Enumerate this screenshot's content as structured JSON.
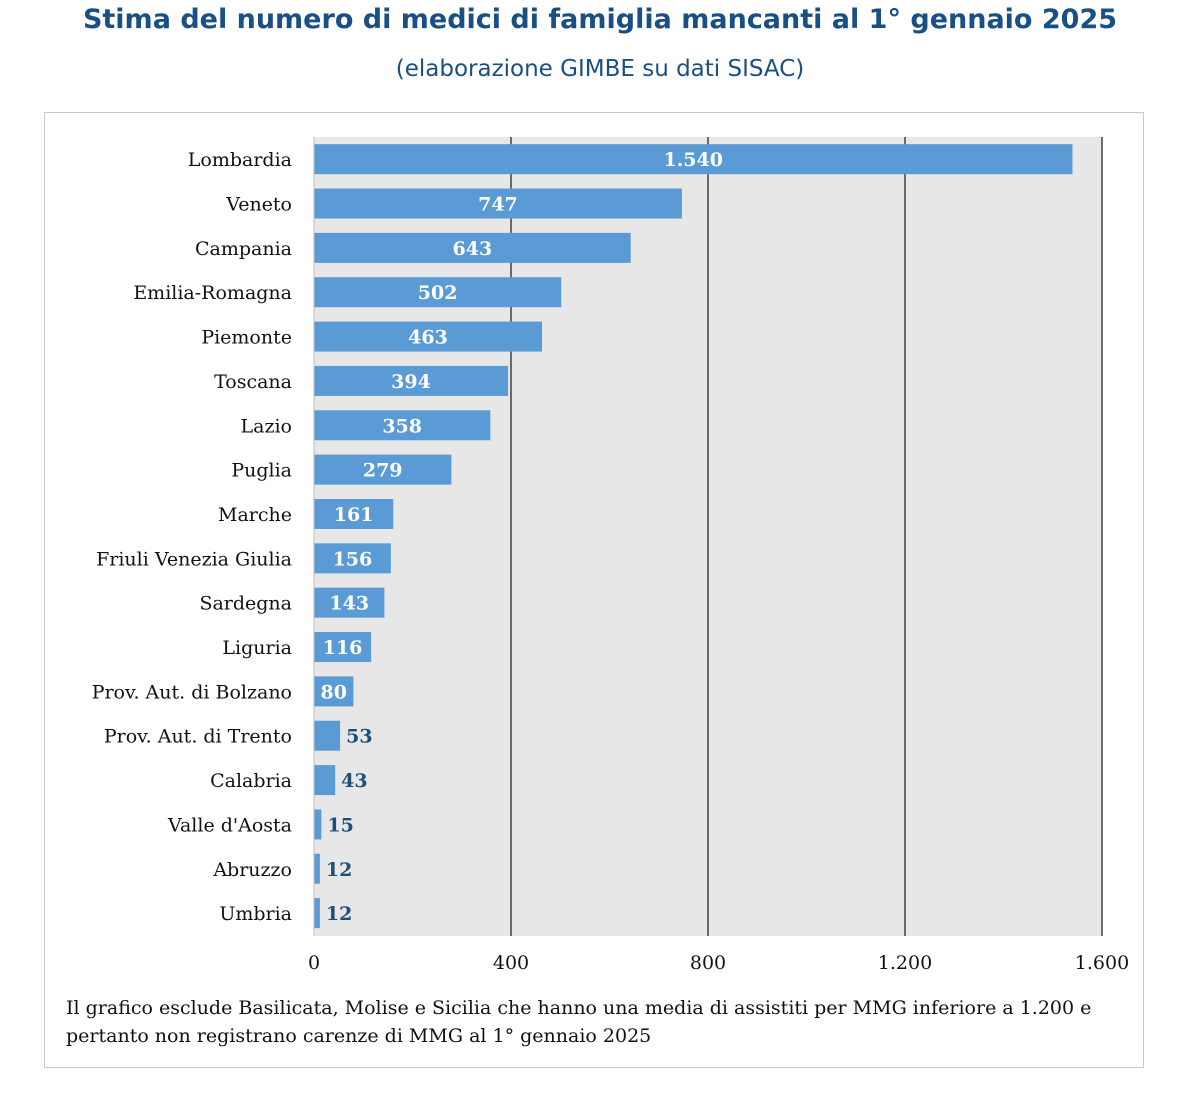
{
  "title": "Stima del numero di medici di famiglia mancanti al 1° gennaio 2025",
  "subtitle": "(elaborazione GIMBE su dati SISAC)",
  "note": "Il grafico esclude Basilicata, Molise e Sicilia che hanno una media di assistiti per MMG inferiore a 1.200 e pertanto non registrano carenze di MMG al 1° gennaio 2025",
  "colors": {
    "bar": "#5b9bd5",
    "plot_background": "#e7e7e7",
    "gridline": "#404040",
    "label_inside": "#ffffff",
    "label_outside": "#1f4e79",
    "title": "#1a4f86"
  },
  "chart_data": {
    "type": "bar",
    "orientation": "horizontal",
    "categories": [
      "Lombardia",
      "Veneto",
      "Campania",
      "Emilia-Romagna",
      "Piemonte",
      "Toscana",
      "Lazio",
      "Puglia",
      "Marche",
      "Friuli Venezia Giulia",
      "Sardegna",
      "Liguria",
      "Prov. Aut. di Bolzano",
      "Prov. Aut. di Trento",
      "Calabria",
      "Valle d'Aosta",
      "Abruzzo",
      "Umbria"
    ],
    "values": [
      1540,
      747,
      643,
      502,
      463,
      394,
      358,
      279,
      161,
      156,
      143,
      116,
      80,
      53,
      43,
      15,
      12,
      12
    ],
    "value_labels": [
      "1.540",
      "747",
      "643",
      "502",
      "463",
      "394",
      "358",
      "279",
      "161",
      "156",
      "143",
      "116",
      "80",
      "53",
      "43",
      "15",
      "12",
      "12"
    ],
    "xlim": [
      0,
      1600
    ],
    "xticks": [
      0,
      400,
      800,
      1200,
      1600
    ],
    "xtick_labels": [
      "0",
      "400",
      "800",
      "1.200",
      "1.600"
    ],
    "grid": "vertical",
    "legend": "none"
  }
}
